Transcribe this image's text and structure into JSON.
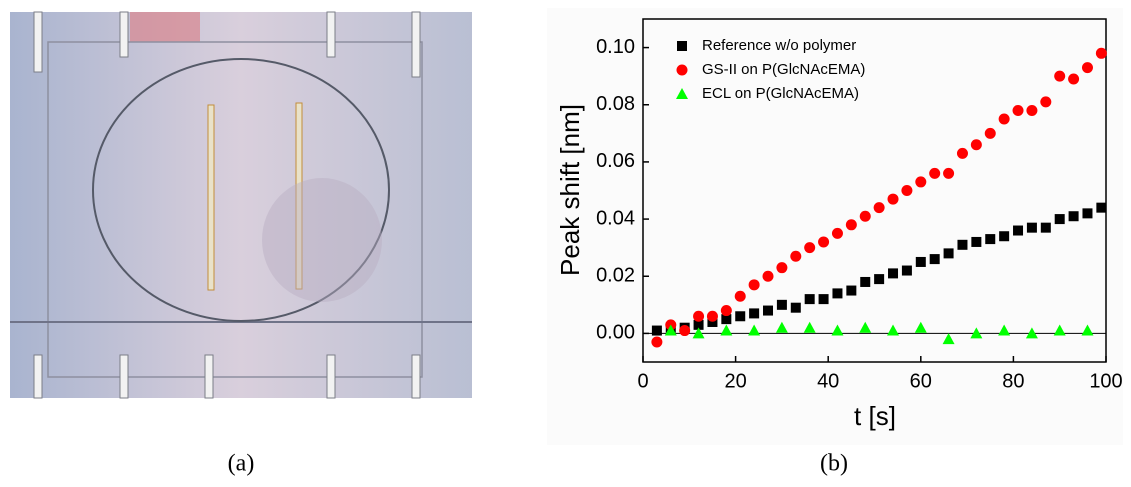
{
  "figure": {
    "panel_a_label": "(a)",
    "panel_b_label": "(b)"
  },
  "chart_data": {
    "type": "scatter",
    "x_label": "t [s]",
    "y_label": "Peak shift [nm]",
    "xlim": [
      0,
      100
    ],
    "xticks": [
      0,
      20,
      40,
      60,
      80,
      100
    ],
    "ylim": [
      -0.01,
      0.11
    ],
    "yticks": [
      {
        "value": 0,
        "label": "0.00"
      },
      {
        "value": 0.02,
        "label": "0.02"
      },
      {
        "value": 0.04,
        "label": "0.04"
      },
      {
        "value": 0.06,
        "label": "0.06"
      },
      {
        "value": 0.08,
        "label": "0.08"
      },
      {
        "value": 0.1,
        "label": "0.10"
      }
    ],
    "zero_line": true,
    "legend": "upper left",
    "series": [
      {
        "name": "Reference w/o polymer",
        "color": "#000000",
        "marker": "square",
        "x": [
          3,
          6,
          9,
          12,
          15,
          18,
          21,
          24,
          27,
          30,
          33,
          36,
          39,
          42,
          45,
          48,
          51,
          54,
          57,
          60,
          63,
          66,
          69,
          72,
          75,
          78,
          81,
          84,
          87,
          90,
          93,
          96,
          99
        ],
        "values": [
          0.001,
          0.002,
          0.002,
          0.003,
          0.004,
          0.005,
          0.006,
          0.007,
          0.008,
          0.01,
          0.009,
          0.012,
          0.012,
          0.014,
          0.015,
          0.018,
          0.019,
          0.021,
          0.022,
          0.025,
          0.026,
          0.028,
          0.031,
          0.032,
          0.033,
          0.034,
          0.036,
          0.037,
          0.037,
          0.04,
          0.041,
          0.042,
          0.044
        ]
      },
      {
        "name": "GS-II on P(GlcNAcEMA)",
        "color": "#ff0000",
        "marker": "circle",
        "x": [
          3,
          6,
          9,
          12,
          15,
          18,
          21,
          24,
          27,
          30,
          33,
          36,
          39,
          42,
          45,
          48,
          51,
          54,
          57,
          60,
          63,
          66,
          69,
          72,
          75,
          78,
          81,
          84,
          87,
          90,
          93,
          96,
          99
        ],
        "values": [
          -0.003,
          0.003,
          0.001,
          0.006,
          0.006,
          0.008,
          0.013,
          0.017,
          0.02,
          0.023,
          0.027,
          0.03,
          0.032,
          0.035,
          0.038,
          0.041,
          0.044,
          0.047,
          0.05,
          0.053,
          0.056,
          0.056,
          0.063,
          0.066,
          0.07,
          0.075,
          0.078,
          0.078,
          0.081,
          0.09,
          0.089,
          0.093,
          0.098
        ]
      },
      {
        "name": "ECL on P(GlcNAcEMA)",
        "color": "#00ff00",
        "marker": "triangle",
        "x": [
          6,
          12,
          18,
          24,
          30,
          36,
          42,
          48,
          54,
          60,
          66,
          72,
          78,
          84,
          90,
          96
        ],
        "values": [
          0.001,
          0.0,
          0.001,
          0.001,
          0.002,
          0.002,
          0.001,
          0.002,
          0.001,
          0.002,
          -0.002,
          0.0,
          0.001,
          0.0,
          0.001,
          0.001
        ]
      }
    ]
  }
}
